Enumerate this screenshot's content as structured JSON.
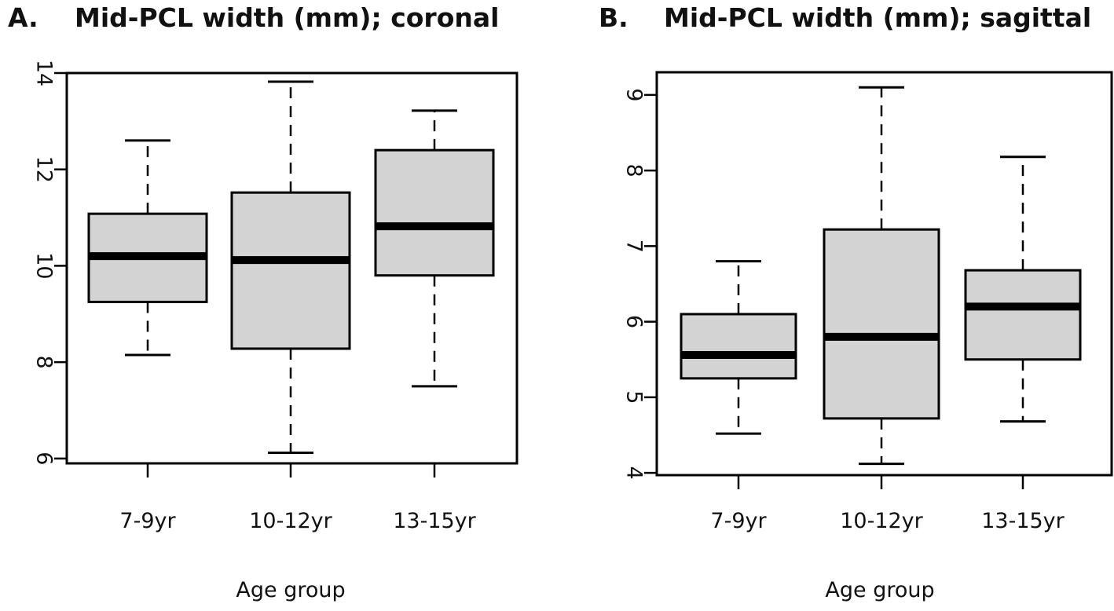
{
  "figure": {
    "panels": [
      {
        "letter": "A.",
        "title": "Mid-PCL width (mm); coronal"
      },
      {
        "letter": "B.",
        "title": "Mid-PCL width (mm); sagittal"
      }
    ]
  },
  "chart_data": [
    {
      "type": "box",
      "title": "Mid-PCL width (mm); coronal",
      "xlabel": "Age group",
      "ylabel": "",
      "categories": [
        "7-9yr",
        "10-12yr",
        "13-15yr"
      ],
      "boxes": [
        {
          "whisker_low": 8.15,
          "q1": 9.25,
          "median": 10.2,
          "q3": 11.08,
          "whisker_high": 12.6
        },
        {
          "whisker_low": 6.12,
          "q1": 8.28,
          "median": 10.12,
          "q3": 11.52,
          "whisker_high": 13.82
        },
        {
          "whisker_low": 7.5,
          "q1": 9.8,
          "median": 10.82,
          "q3": 12.4,
          "whisker_high": 13.22
        }
      ],
      "ylim": [
        5.9,
        14.0
      ],
      "yticks": [
        6,
        8,
        10,
        12,
        14
      ],
      "grid": false,
      "box_fill": "#d3d3d3"
    },
    {
      "type": "box",
      "title": "Mid-PCL width (mm); sagittal",
      "xlabel": "Age group",
      "ylabel": "",
      "categories": [
        "7-9yr",
        "10-12yr",
        "13-15yr"
      ],
      "boxes": [
        {
          "whisker_low": 4.52,
          "q1": 5.25,
          "median": 5.56,
          "q3": 6.1,
          "whisker_high": 6.8
        },
        {
          "whisker_low": 4.12,
          "q1": 4.72,
          "median": 5.8,
          "q3": 7.22,
          "whisker_high": 9.1
        },
        {
          "whisker_low": 4.68,
          "q1": 5.5,
          "median": 6.2,
          "q3": 6.68,
          "whisker_high": 8.18
        }
      ],
      "ylim": [
        3.97,
        9.3
      ],
      "yticks": [
        4,
        5,
        6,
        7,
        8,
        9
      ],
      "grid": false,
      "box_fill": "#d3d3d3"
    }
  ]
}
